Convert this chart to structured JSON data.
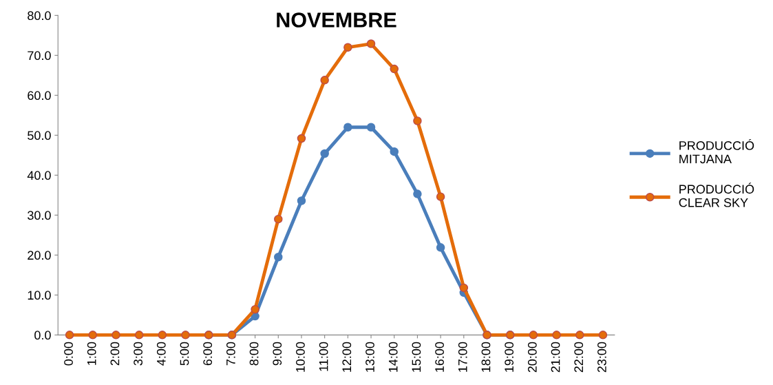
{
  "chart_data": {
    "type": "line",
    "title": "NOVEMBRE",
    "categories": [
      "0:00",
      "1:00",
      "2:00",
      "3:00",
      "4:00",
      "5:00",
      "6:00",
      "7:00",
      "8:00",
      "9:00",
      "10:00",
      "11:00",
      "12:00",
      "13:00",
      "14:00",
      "15:00",
      "16:00",
      "17:00",
      "18:00",
      "19:00",
      "20:00",
      "21:00",
      "22:00",
      "23:00"
    ],
    "series": [
      {
        "name": "PRODUCCIÓ MITJANA",
        "color": "#4a7ebb",
        "values": [
          null,
          null,
          null,
          null,
          null,
          null,
          0,
          0,
          4.7,
          19.5,
          33.6,
          45.4,
          52.0,
          52.0,
          45.9,
          35.3,
          21.9,
          10.6,
          0,
          0,
          null,
          null,
          null,
          null
        ]
      },
      {
        "name": "PRODUCCIÓ CLEAR SKY",
        "color": "#e46c0a",
        "values": [
          0,
          0,
          0,
          0,
          0,
          0,
          0,
          0,
          6.4,
          29.0,
          49.2,
          63.8,
          72.0,
          72.9,
          66.6,
          53.6,
          34.6,
          11.8,
          0,
          0,
          0,
          0,
          0,
          0
        ]
      }
    ],
    "ylim": [
      0,
      80
    ],
    "yticks": [
      {
        "value": 0,
        "label": "0.0"
      },
      {
        "value": 10,
        "label": "10.0"
      },
      {
        "value": 20,
        "label": "20.0"
      },
      {
        "value": 30,
        "label": "30.0"
      },
      {
        "value": 40,
        "label": "40.0"
      },
      {
        "value": 50,
        "label": "50.0"
      },
      {
        "value": 60,
        "label": "60.0"
      },
      {
        "value": 70,
        "label": "70.0"
      },
      {
        "value": 80,
        "label": "80.0"
      }
    ],
    "grid": false,
    "legend": "right",
    "marker": "circle",
    "line_style": "solid"
  }
}
